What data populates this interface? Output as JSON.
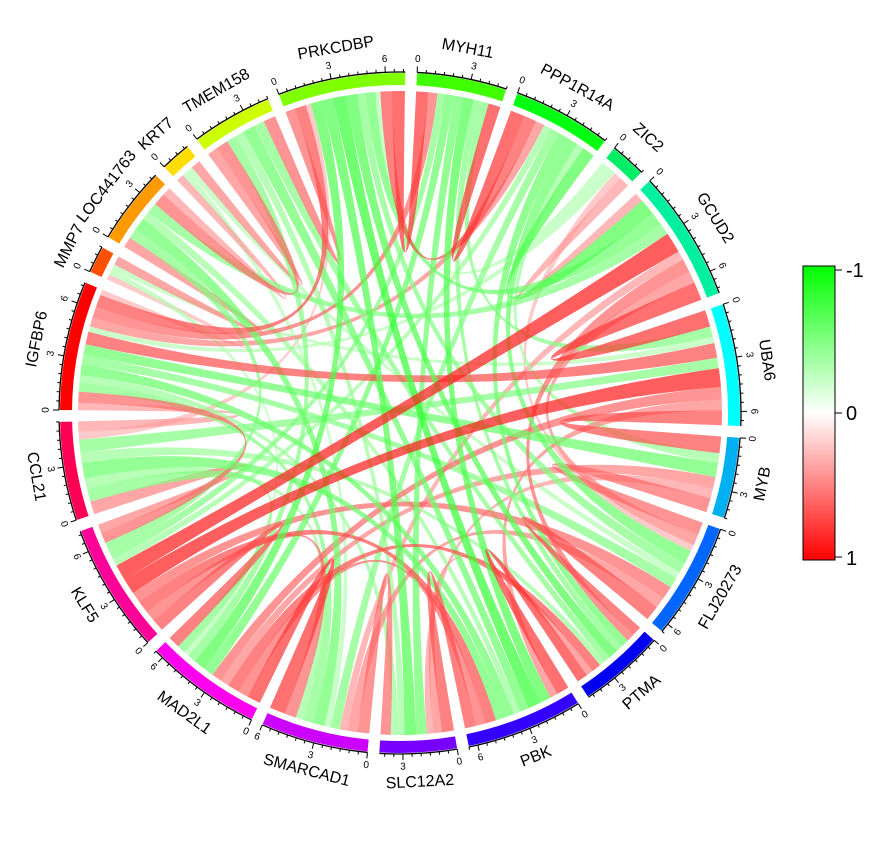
{
  "chart_data": {
    "type": "chord",
    "title": "",
    "axis_major_tick_step": 3,
    "axis_minor_tick_step": 0.5,
    "sectors": [
      {
        "name": "IGFBP6",
        "size": 7.2,
        "color": "#FF0000"
      },
      {
        "name": "MMP7",
        "size": 1.5,
        "color": "#FF5000"
      },
      {
        "name": "LOC441763",
        "size": 4.3,
        "color": "#FF9900"
      },
      {
        "name": "KRT7",
        "size": 1.7,
        "color": "#FFDD00"
      },
      {
        "name": "TMEM158",
        "size": 4.5,
        "color": "#CCFF00"
      },
      {
        "name": "PRKCDBP",
        "size": 7.1,
        "color": "#80FF00"
      },
      {
        "name": "MYH11",
        "size": 5.0,
        "color": "#40FF00"
      },
      {
        "name": "PPP1R14A",
        "size": 5.5,
        "color": "#00FF10"
      },
      {
        "name": "ZIC2",
        "size": 2.0,
        "color": "#00EE66"
      },
      {
        "name": "GCUD2",
        "size": 7.3,
        "color": "#00F0A0"
      },
      {
        "name": "UBA6",
        "size": 6.8,
        "color": "#00FFFF"
      },
      {
        "name": "MYB",
        "size": 4.5,
        "color": "#00B0F0"
      },
      {
        "name": "FLJ20273",
        "size": 6.5,
        "color": "#0066FF"
      },
      {
        "name": "PTMA",
        "size": 4.8,
        "color": "#0000F0"
      },
      {
        "name": "PBK",
        "size": 6.5,
        "color": "#3300FF"
      },
      {
        "name": "SLC12A2",
        "size": 4.3,
        "color": "#7700FF"
      },
      {
        "name": "SMARCAD1",
        "size": 6.0,
        "color": "#CC00FF"
      },
      {
        "name": "MAD2L1",
        "size": 6.5,
        "color": "#FF00EE"
      },
      {
        "name": "KLF5",
        "size": 7.2,
        "color": "#FF0099"
      },
      {
        "name": "CCL21",
        "size": 5.5,
        "color": "#FF0055"
      }
    ],
    "links": [
      [
        "IGFBP6",
        "PRKCDBP",
        0.7
      ],
      [
        "IGFBP6",
        "MYH11",
        0.6
      ],
      [
        "IGFBP6",
        "PPP1R14A",
        0.5
      ],
      [
        "IGFBP6",
        "CCL21",
        0.4
      ],
      [
        "PRKCDBP",
        "MYH11",
        0.8
      ],
      [
        "PRKCDBP",
        "PPP1R14A",
        0.7
      ],
      [
        "MYH11",
        "PPP1R14A",
        0.8
      ],
      [
        "PRKCDBP",
        "CCL21",
        0.3
      ],
      [
        "MMP7",
        "LOC441763",
        0.5
      ],
      [
        "MMP7",
        "IGFBP6",
        0.3
      ],
      [
        "LOC441763",
        "TMEM158",
        0.6
      ],
      [
        "KRT7",
        "TMEM158",
        0.5
      ],
      [
        "LOC441763",
        "KRT7",
        0.4
      ],
      [
        "TMEM158",
        "PRKCDBP",
        0.6
      ],
      [
        "GCUD2",
        "UBA6",
        0.8
      ],
      [
        "GCUD2",
        "KLF5",
        0.9
      ],
      [
        "UBA6",
        "KLF5",
        0.9
      ],
      [
        "UBA6",
        "MYB",
        0.7
      ],
      [
        "MYB",
        "FLJ20273",
        0.6
      ],
      [
        "FLJ20273",
        "PTMA",
        0.7
      ],
      [
        "PTMA",
        "PBK",
        0.8
      ],
      [
        "PBK",
        "SLC12A2",
        0.7
      ],
      [
        "SLC12A2",
        "SMARCAD1",
        0.6
      ],
      [
        "SMARCAD1",
        "MAD2L1",
        0.8
      ],
      [
        "MAD2L1",
        "KLF5",
        0.7
      ],
      [
        "FLJ20273",
        "SMARCAD1",
        0.5
      ],
      [
        "PTMA",
        "MAD2L1",
        0.7
      ],
      [
        "PBK",
        "MAD2L1",
        0.6
      ],
      [
        "GCUD2",
        "PTMA",
        0.6
      ],
      [
        "UBA6",
        "PBK",
        0.5
      ],
      [
        "MYB",
        "MAD2L1",
        0.5
      ],
      [
        "FLJ20273",
        "KLF5",
        0.6
      ],
      [
        "GCUD2",
        "SMARCAD1",
        0.4
      ],
      [
        "UBA6",
        "MAD2L1",
        0.6
      ],
      [
        "KLF5",
        "CCL21",
        0.5
      ],
      [
        "IGFBP6",
        "KLF5",
        0.6
      ],
      [
        "IGFBP6",
        "UBA6",
        0.7
      ],
      [
        "ZIC2",
        "GCUD2",
        0.4
      ],
      [
        "ZIC2",
        "FLJ20273",
        0.3
      ],
      [
        "SLC12A2",
        "MYB",
        0.4
      ],
      [
        "PBK",
        "KLF5",
        0.7
      ],
      [
        "PTMA",
        "SLC12A2",
        0.5
      ],
      [
        "SMARCAD1",
        "KLF5",
        0.6
      ],
      [
        "GCUD2",
        "FLJ20273",
        0.5
      ],
      [
        "IGFBP6",
        "MYB",
        -0.6
      ],
      [
        "IGFBP6",
        "FLJ20273",
        -0.5
      ],
      [
        "IGFBP6",
        "PBK",
        -0.6
      ],
      [
        "IGFBP6",
        "SMARCAD1",
        -0.5
      ],
      [
        "PRKCDBP",
        "GCUD2",
        -0.6
      ],
      [
        "PRKCDBP",
        "PTMA",
        -0.7
      ],
      [
        "PRKCDBP",
        "PBK",
        -0.8
      ],
      [
        "PRKCDBP",
        "SLC12A2",
        -0.7
      ],
      [
        "PRKCDBP",
        "MAD2L1",
        -0.7
      ],
      [
        "PRKCDBP",
        "FLJ20273",
        -0.5
      ],
      [
        "MYH11",
        "PBK",
        -0.7
      ],
      [
        "MYH11",
        "SLC12A2",
        -0.6
      ],
      [
        "MYH11",
        "MAD2L1",
        -0.6
      ],
      [
        "MYH11",
        "PTMA",
        -0.5
      ],
      [
        "PPP1R14A",
        "GCUD2",
        -0.7
      ],
      [
        "PPP1R14A",
        "FLJ20273",
        -0.6
      ],
      [
        "PPP1R14A",
        "PTMA",
        -0.6
      ],
      [
        "PPP1R14A",
        "SMARCAD1",
        -0.5
      ],
      [
        "CCL21",
        "UBA6",
        -0.5
      ],
      [
        "CCL21",
        "PTMA",
        -0.4
      ],
      [
        "CCL21",
        "PBK",
        -0.6
      ],
      [
        "CCL21",
        "MAD2L1",
        -0.5
      ],
      [
        "LOC441763",
        "SMARCAD1",
        -0.6
      ],
      [
        "LOC441763",
        "GCUD2",
        -0.5
      ],
      [
        "LOC441763",
        "PBK",
        -0.4
      ],
      [
        "MMP7",
        "UBA6",
        -0.3
      ],
      [
        "TMEM158",
        "PTMA",
        -0.5
      ],
      [
        "TMEM158",
        "PBK",
        -0.6
      ],
      [
        "TMEM158",
        "SLC12A2",
        -0.4
      ],
      [
        "KRT7",
        "SMARCAD1",
        -0.3
      ],
      [
        "ZIC2",
        "PRKCDBP",
        -0.3
      ],
      [
        "ZIC2",
        "IGFBP6",
        -0.3
      ],
      [
        "MYH11",
        "KLF5",
        -0.5
      ],
      [
        "PPP1R14A",
        "KLF5",
        -0.4
      ],
      [
        "CCL21",
        "SMARCAD1",
        -0.4
      ],
      [
        "TMEM158",
        "MAD2L1",
        -0.5
      ],
      [
        "MYH11",
        "UBA6",
        -0.5
      ],
      [
        "PPP1R14A",
        "MYB",
        -0.4
      ],
      [
        "LOC441763",
        "KLF5",
        -0.5
      ],
      [
        "SLC12A2",
        "IGFBP6",
        -0.4
      ],
      [
        "KRT7",
        "FLJ20273",
        -0.3
      ],
      [
        "MMP7",
        "MAD2L1",
        -0.3
      ]
    ],
    "legend": {
      "type": "color-scale",
      "placement": "right",
      "labels": [
        "-1",
        "0",
        "1"
      ],
      "colors": {
        "negative": "#00FF00",
        "zero": "#FFFFFF",
        "positive": "#FF0000"
      }
    }
  }
}
